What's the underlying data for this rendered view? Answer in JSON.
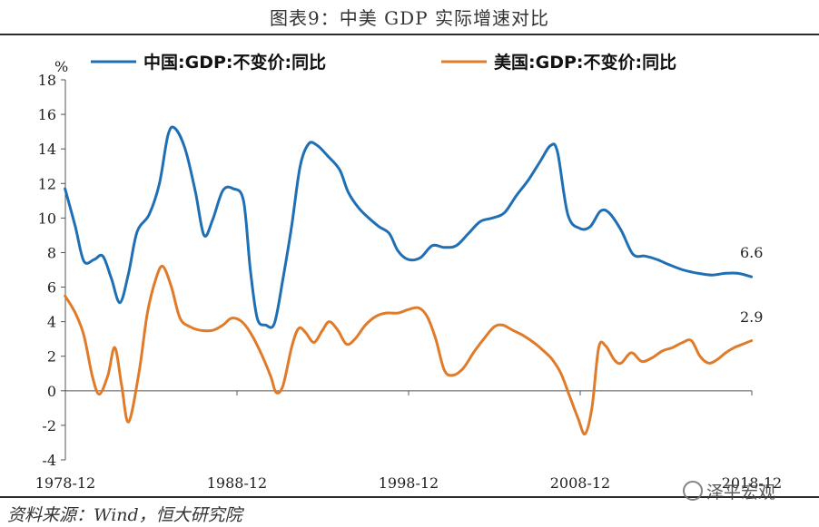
{
  "header": {
    "title": "图表9：中美 GDP 实际增速对比"
  },
  "footer": {
    "source": "资料来源：Wind，恒大研究院",
    "watermark": "泽平宏观"
  },
  "colors": {
    "china": "#1f6fb4",
    "usa": "#e07b2a",
    "axis": "#555555"
  },
  "chart_data": {
    "type": "line",
    "ylabel": "%",
    "ylim": [
      -4,
      18
    ],
    "yticks": [
      18,
      16,
      14,
      12,
      10,
      8,
      6,
      4,
      2,
      0,
      -2,
      -4
    ],
    "xlim": [
      1978.92,
      2018.92
    ],
    "xticks": [
      {
        "x": 1978.92,
        "label": "1978-12"
      },
      {
        "x": 1988.92,
        "label": "1988-12"
      },
      {
        "x": 1998.92,
        "label": "1998-12"
      },
      {
        "x": 2008.92,
        "label": "2008-12"
      },
      {
        "x": 2018.92,
        "label": "2018-12"
      }
    ],
    "legend_position": "top",
    "series": [
      {
        "name": "中国:GDP:不变价:同比",
        "color": "#1f6fb4",
        "end_label": "6.6",
        "points": [
          [
            1978.9,
            11.7
          ],
          [
            1979.5,
            9.5
          ],
          [
            1980.0,
            7.5
          ],
          [
            1980.6,
            7.6
          ],
          [
            1981.1,
            7.8
          ],
          [
            1981.6,
            6.5
          ],
          [
            1982.1,
            5.1
          ],
          [
            1982.6,
            6.8
          ],
          [
            1983.1,
            9.2
          ],
          [
            1983.8,
            10.2
          ],
          [
            1984.4,
            12.0
          ],
          [
            1984.9,
            14.8
          ],
          [
            1985.3,
            15.2
          ],
          [
            1985.9,
            14.0
          ],
          [
            1986.5,
            11.5
          ],
          [
            1987.0,
            9.0
          ],
          [
            1987.5,
            9.9
          ],
          [
            1988.1,
            11.6
          ],
          [
            1988.7,
            11.7
          ],
          [
            1989.3,
            11.0
          ],
          [
            1989.7,
            7.0
          ],
          [
            1990.1,
            4.2
          ],
          [
            1990.6,
            3.8
          ],
          [
            1991.1,
            3.9
          ],
          [
            1991.6,
            6.5
          ],
          [
            1992.1,
            9.5
          ],
          [
            1992.6,
            13.0
          ],
          [
            1993.1,
            14.3
          ],
          [
            1993.6,
            14.2
          ],
          [
            1994.2,
            13.6
          ],
          [
            1994.9,
            12.8
          ],
          [
            1995.4,
            11.5
          ],
          [
            1996.0,
            10.6
          ],
          [
            1996.6,
            10.0
          ],
          [
            1997.2,
            9.5
          ],
          [
            1997.8,
            9.1
          ],
          [
            1998.3,
            8.1
          ],
          [
            1998.9,
            7.6
          ],
          [
            1999.6,
            7.7
          ],
          [
            2000.3,
            8.4
          ],
          [
            2001.0,
            8.3
          ],
          [
            2001.7,
            8.4
          ],
          [
            2002.4,
            9.1
          ],
          [
            2003.1,
            9.8
          ],
          [
            2003.8,
            10.0
          ],
          [
            2004.5,
            10.3
          ],
          [
            2005.2,
            11.3
          ],
          [
            2005.9,
            12.2
          ],
          [
            2006.6,
            13.3
          ],
          [
            2007.2,
            14.2
          ],
          [
            2007.6,
            13.8
          ],
          [
            2008.2,
            10.2
          ],
          [
            2008.9,
            9.4
          ],
          [
            2009.5,
            9.5
          ],
          [
            2010.1,
            10.4
          ],
          [
            2010.6,
            10.3
          ],
          [
            2011.3,
            9.3
          ],
          [
            2012.0,
            7.9
          ],
          [
            2012.7,
            7.8
          ],
          [
            2013.4,
            7.6
          ],
          [
            2014.1,
            7.3
          ],
          [
            2014.9,
            7.0
          ],
          [
            2015.8,
            6.8
          ],
          [
            2016.6,
            6.7
          ],
          [
            2017.4,
            6.8
          ],
          [
            2018.1,
            6.8
          ],
          [
            2018.9,
            6.6
          ]
        ]
      },
      {
        "name": "美国:GDP:不变价:同比",
        "color": "#e07b2a",
        "end_label": "2.9",
        "points": [
          [
            1978.9,
            5.5
          ],
          [
            1979.5,
            4.5
          ],
          [
            1980.0,
            3.2
          ],
          [
            1980.5,
            0.8
          ],
          [
            1980.9,
            -0.2
          ],
          [
            1981.4,
            0.9
          ],
          [
            1981.8,
            2.5
          ],
          [
            1982.2,
            0.3
          ],
          [
            1982.6,
            -1.8
          ],
          [
            1983.2,
            1.0
          ],
          [
            1983.7,
            4.5
          ],
          [
            1984.2,
            6.5
          ],
          [
            1984.6,
            7.2
          ],
          [
            1985.1,
            6.0
          ],
          [
            1985.6,
            4.2
          ],
          [
            1986.2,
            3.7
          ],
          [
            1986.8,
            3.5
          ],
          [
            1987.5,
            3.5
          ],
          [
            1988.1,
            3.8
          ],
          [
            1988.6,
            4.2
          ],
          [
            1989.2,
            4.0
          ],
          [
            1989.8,
            3.2
          ],
          [
            1990.4,
            2.0
          ],
          [
            1990.9,
            0.8
          ],
          [
            1991.2,
            -0.1
          ],
          [
            1991.6,
            0.3
          ],
          [
            1992.1,
            2.5
          ],
          [
            1992.5,
            3.6
          ],
          [
            1992.9,
            3.4
          ],
          [
            1993.4,
            2.8
          ],
          [
            1993.9,
            3.5
          ],
          [
            1994.3,
            4.0
          ],
          [
            1994.8,
            3.5
          ],
          [
            1995.3,
            2.7
          ],
          [
            1995.8,
            3.0
          ],
          [
            1996.4,
            3.8
          ],
          [
            1997.0,
            4.3
          ],
          [
            1997.6,
            4.5
          ],
          [
            1998.3,
            4.5
          ],
          [
            1998.9,
            4.7
          ],
          [
            1999.5,
            4.8
          ],
          [
            2000.0,
            4.3
          ],
          [
            2000.5,
            3.0
          ],
          [
            2001.0,
            1.2
          ],
          [
            2001.5,
            0.9
          ],
          [
            2002.1,
            1.3
          ],
          [
            2002.7,
            2.2
          ],
          [
            2003.3,
            3.0
          ],
          [
            2003.9,
            3.7
          ],
          [
            2004.4,
            3.8
          ],
          [
            2005.0,
            3.5
          ],
          [
            2005.6,
            3.2
          ],
          [
            2006.2,
            2.8
          ],
          [
            2006.8,
            2.3
          ],
          [
            2007.3,
            1.8
          ],
          [
            2007.8,
            1.0
          ],
          [
            2008.3,
            -0.3
          ],
          [
            2008.8,
            -1.6
          ],
          [
            2009.2,
            -2.5
          ],
          [
            2009.6,
            -1.0
          ],
          [
            2010.0,
            2.5
          ],
          [
            2010.4,
            2.6
          ],
          [
            2010.9,
            1.8
          ],
          [
            2011.3,
            1.6
          ],
          [
            2011.9,
            2.2
          ],
          [
            2012.5,
            1.7
          ],
          [
            2013.1,
            1.9
          ],
          [
            2013.7,
            2.3
          ],
          [
            2014.3,
            2.5
          ],
          [
            2014.9,
            2.8
          ],
          [
            2015.4,
            2.9
          ],
          [
            2015.9,
            2.0
          ],
          [
            2016.4,
            1.6
          ],
          [
            2016.9,
            1.8
          ],
          [
            2017.4,
            2.2
          ],
          [
            2017.9,
            2.5
          ],
          [
            2018.4,
            2.7
          ],
          [
            2018.9,
            2.9
          ]
        ]
      }
    ]
  }
}
